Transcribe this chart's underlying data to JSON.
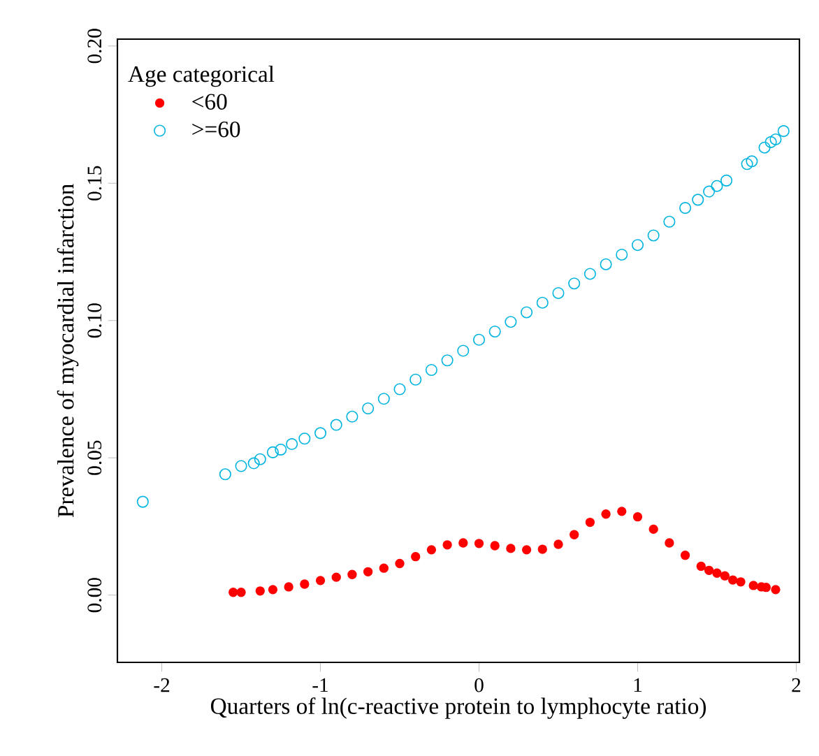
{
  "chart_data": {
    "type": "scatter",
    "xlabel": "Quarters of ln(c-reactive protein to lymphocyte ratio)",
    "ylabel": "Prevalence of myocardial infarction",
    "legend_title": "Age categorical",
    "legend": "top left",
    "marker": "circle",
    "grid": false,
    "xlim": [
      -2.28,
      2.02
    ],
    "ylim": [
      -0.0245,
      0.2025
    ],
    "xticks": [
      -2,
      -1,
      0,
      1,
      2
    ],
    "yticks": [
      {
        "value": 0,
        "label": "0.00"
      },
      {
        "value": 0.05,
        "label": "0.05"
      },
      {
        "value": 0.1,
        "label": "0.10"
      },
      {
        "value": 0.15,
        "label": "0.15"
      },
      {
        "value": 0.2,
        "label": "0.20"
      }
    ],
    "series": [
      {
        "name": "<60",
        "color": "#ff0000",
        "x": [
          -1.55,
          -1.5,
          -1.38,
          -1.3,
          -1.2,
          -1.1,
          -1.0,
          -0.9,
          -0.8,
          -0.7,
          -0.6,
          -0.5,
          -0.4,
          -0.3,
          -0.2,
          -0.1,
          0.0,
          0.1,
          0.2,
          0.3,
          0.4,
          0.5,
          0.6,
          0.7,
          0.8,
          0.9,
          1.0,
          1.1,
          1.2,
          1.3,
          1.4,
          1.45,
          1.5,
          1.55,
          1.6,
          1.65,
          1.73,
          1.78,
          1.81,
          1.87
        ],
        "values": [
          0.001,
          0.001,
          0.0015,
          0.002,
          0.003,
          0.004,
          0.0053,
          0.0065,
          0.0075,
          0.0085,
          0.0098,
          0.0115,
          0.014,
          0.0165,
          0.0183,
          0.019,
          0.0188,
          0.018,
          0.017,
          0.0165,
          0.0167,
          0.0185,
          0.022,
          0.0265,
          0.0295,
          0.0305,
          0.0285,
          0.024,
          0.019,
          0.0145,
          0.0105,
          0.009,
          0.008,
          0.007,
          0.0055,
          0.0048,
          0.0035,
          0.003,
          0.0028,
          0.002
        ]
      },
      {
        "name": ">=60",
        "color": "#00b4e0",
        "x": [
          -2.12,
          -1.6,
          -1.5,
          -1.42,
          -1.38,
          -1.3,
          -1.25,
          -1.18,
          -1.1,
          -1.0,
          -0.9,
          -0.8,
          -0.7,
          -0.6,
          -0.5,
          -0.4,
          -0.3,
          -0.2,
          -0.1,
          0.0,
          0.1,
          0.2,
          0.3,
          0.4,
          0.5,
          0.6,
          0.7,
          0.8,
          0.9,
          1.0,
          1.1,
          1.2,
          1.3,
          1.38,
          1.45,
          1.5,
          1.56,
          1.69,
          1.72,
          1.8,
          1.84,
          1.87,
          1.92
        ],
        "values": [
          0.034,
          0.044,
          0.047,
          0.048,
          0.0495,
          0.052,
          0.053,
          0.055,
          0.057,
          0.059,
          0.062,
          0.065,
          0.068,
          0.0715,
          0.075,
          0.0785,
          0.082,
          0.0855,
          0.089,
          0.093,
          0.096,
          0.0995,
          0.103,
          0.1065,
          0.11,
          0.1135,
          0.117,
          0.1205,
          0.124,
          0.1275,
          0.131,
          0.136,
          0.141,
          0.144,
          0.147,
          0.149,
          0.151,
          0.157,
          0.158,
          0.163,
          0.165,
          0.166,
          0.169
        ]
      }
    ]
  }
}
